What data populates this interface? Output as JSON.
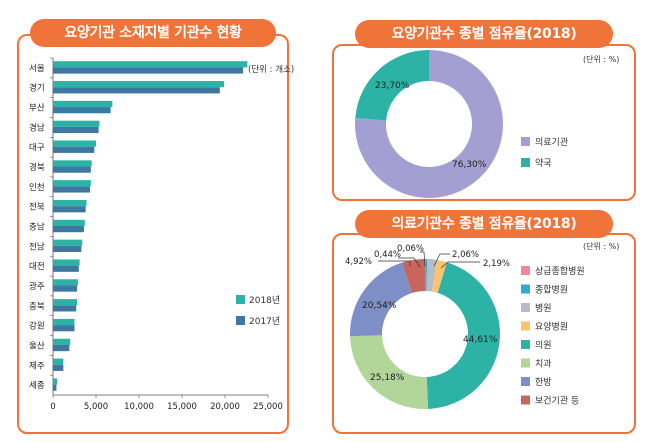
{
  "colors": {
    "accent": "#f0733a",
    "y2018": "#2db3a6",
    "y2017": "#3f77a3"
  },
  "chart_data": [
    {
      "type": "bar",
      "title": "요양기관 소재지별 기관수 현황",
      "unit_note": "(단위 : 개소)",
      "orientation": "horizontal",
      "categories": [
        "서울",
        "경기",
        "부산",
        "경남",
        "대구",
        "경북",
        "인천",
        "전북",
        "충남",
        "전남",
        "대전",
        "광주",
        "충북",
        "강원",
        "울산",
        "제주",
        "세종"
      ],
      "series": [
        {
          "name": "2018년",
          "color": "#2db3a6",
          "values": [
            22600,
            19900,
            6900,
            5400,
            5000,
            4500,
            4400,
            3900,
            3700,
            3400,
            3100,
            2900,
            2800,
            2500,
            2000,
            1200,
            500
          ]
        },
        {
          "name": "2017년",
          "color": "#3f77a3",
          "values": [
            22100,
            19400,
            6700,
            5300,
            4800,
            4400,
            4300,
            3800,
            3600,
            3300,
            3000,
            2800,
            2700,
            2500,
            1900,
            1200,
            400
          ]
        }
      ],
      "xlim": [
        0,
        25000
      ],
      "x_ticks": [
        "0",
        "5,000",
        "10,000",
        "15,000",
        "20,000",
        "25,000"
      ],
      "legend_position": "bottom-right"
    },
    {
      "type": "pie",
      "donut": true,
      "title": "요양기관수 종별 점유율(2018)",
      "unit_note": "(단위 : %)",
      "slices": [
        {
          "name": "의료기관",
          "value": 76.3,
          "label": "76,30%",
          "color": "#a49fd2"
        },
        {
          "name": "약국",
          "value": 23.7,
          "label": "23,70%",
          "color": "#2db3a6"
        }
      ],
      "legend_position": "right"
    },
    {
      "type": "pie",
      "donut": true,
      "title": "의료기관수 종별 점유율(2018)",
      "unit_note": "(단위 : %)",
      "slices": [
        {
          "name": "상급종합병원",
          "value": 0.06,
          "label": "0,06%",
          "color": "#f0879a"
        },
        {
          "name": "종합병원",
          "value": 0.44,
          "label": "0,44%",
          "color": "#33a9d4"
        },
        {
          "name": "병원",
          "value": 2.06,
          "label": "2,06%",
          "color": "#b4bcc6"
        },
        {
          "name": "요양병원",
          "value": 2.19,
          "label": "2,19%",
          "color": "#fbc46e"
        },
        {
          "name": "의원",
          "value": 44.61,
          "label": "44,61%",
          "color": "#2db3a6"
        },
        {
          "name": "치과",
          "value": 25.18,
          "label": "25,18%",
          "color": "#b2d59a"
        },
        {
          "name": "한방",
          "value": 20.54,
          "label": "20,54%",
          "color": "#7d8fc6"
        },
        {
          "name": "보건기관 등",
          "value": 4.92,
          "label": "4,92%",
          "color": "#c9655d"
        }
      ],
      "legend_position": "right"
    }
  ]
}
